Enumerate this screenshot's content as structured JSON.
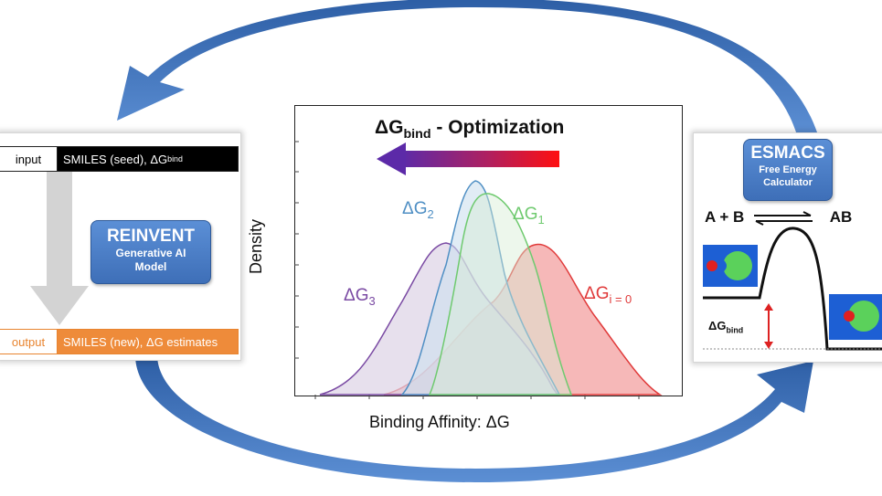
{
  "reinvent_panel": {
    "input_label": "input",
    "input_value_prefix": "SMILES (seed), ΔG",
    "input_value_sub": "bind",
    "model_title": "REINVENT",
    "model_subtitle_1": "Generative AI",
    "model_subtitle_2": "Model",
    "output_label": "output",
    "output_value": "SMILES (new), ΔG estimates"
  },
  "esmacs_panel": {
    "title": "ESMACS",
    "subtitle_1": "Free Energy",
    "subtitle_2": "Calculator",
    "reaction_left": "A + B",
    "reaction_right": "AB",
    "dg_prefix": "ΔG",
    "dg_sub": "bind"
  },
  "chart_data": {
    "type": "area",
    "title_prefix": "ΔG",
    "title_sub": "bind",
    "title_suffix": " - Optimization",
    "xlabel": "Binding Affinity: ΔG",
    "ylabel": "Density",
    "series": [
      {
        "name_prefix": "ΔG",
        "name_sub": "i = 0",
        "color": "#e03a3a",
        "fill": "#f3a0a0"
      },
      {
        "name_prefix": "ΔG",
        "name_sub": "1",
        "color": "#6fca6f",
        "fill": "#d8eed4"
      },
      {
        "name_prefix": "ΔG",
        "name_sub": "2",
        "color": "#4f8fc4",
        "fill": "#cde0ee"
      },
      {
        "name_prefix": "ΔG",
        "name_sub": "3",
        "color": "#7a4aa3",
        "fill": "#ddd3e6"
      }
    ],
    "arrow_colors": [
      "#5c2aa8",
      "#ff1010"
    ]
  },
  "colors": {
    "cycle_arrow": "#3f6fb8",
    "gray_arrow": "#d3d3d3",
    "energy_arrow": "#dd2222"
  }
}
